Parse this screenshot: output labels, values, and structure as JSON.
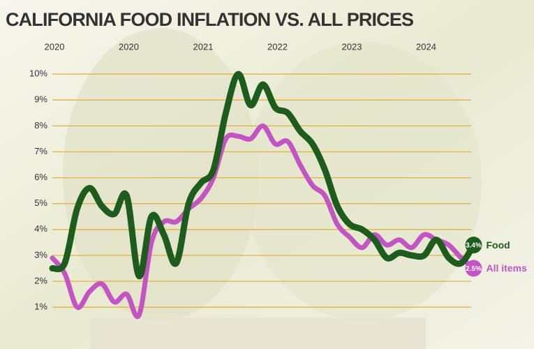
{
  "chart_data": {
    "type": "line",
    "title": "CALIFORNIA FOOD INFLATION VS. ALL PRICES",
    "x": [
      0,
      2,
      4,
      6,
      8,
      10,
      12,
      14,
      16,
      18,
      20,
      22,
      24,
      26,
      28,
      30,
      32,
      34,
      36,
      38,
      40,
      42,
      44,
      46,
      48,
      50,
      52,
      54,
      56,
      58,
      60,
      62,
      64,
      66,
      68
    ],
    "xlim": [
      0,
      68
    ],
    "xticks": [
      {
        "value": 0,
        "label": "2020"
      },
      {
        "value": 12,
        "label": "2020"
      },
      {
        "value": 24,
        "label": "2021"
      },
      {
        "value": 36,
        "label": "2022"
      },
      {
        "value": 48,
        "label": "2023"
      },
      {
        "value": 60,
        "label": "2024"
      }
    ],
    "ylim": [
      0.8,
      10.1
    ],
    "yticks": [
      {
        "value": 1,
        "label": "1%"
      },
      {
        "value": 2,
        "label": "2%"
      },
      {
        "value": 3,
        "label": "3%"
      },
      {
        "value": 4,
        "label": "4%"
      },
      {
        "value": 5,
        "label": "5%"
      },
      {
        "value": 6,
        "label": "6%"
      },
      {
        "value": 7,
        "label": "7%"
      },
      {
        "value": 8,
        "label": "8%"
      },
      {
        "value": 9,
        "label": "9%"
      },
      {
        "value": 10,
        "label": "10%"
      }
    ],
    "grid": true,
    "series": [
      {
        "name": "Food",
        "color": "#1e5c1e",
        "end_label": "3.4%",
        "values": [
          2.5,
          2.7,
          4.8,
          5.6,
          4.9,
          4.6,
          5.3,
          2.2,
          4.5,
          3.8,
          2.7,
          5.0,
          5.8,
          6.3,
          8.5,
          10.0,
          8.8,
          9.6,
          8.7,
          8.5,
          7.8,
          7.3,
          6.3,
          4.9,
          4.2,
          4.0,
          3.6,
          2.9,
          3.1,
          3.0,
          3.0,
          3.6,
          2.9,
          2.7,
          3.4
        ]
      },
      {
        "name": "All items",
        "color": "#c354c3",
        "end_label": "2.5%",
        "values": [
          2.9,
          2.3,
          1.0,
          1.6,
          1.9,
          1.2,
          1.5,
          0.7,
          3.5,
          4.3,
          4.3,
          4.8,
          5.2,
          6.0,
          7.5,
          7.6,
          7.5,
          8.0,
          7.3,
          7.4,
          6.5,
          5.7,
          5.3,
          4.2,
          3.7,
          3.3,
          3.8,
          3.4,
          3.6,
          3.3,
          3.8,
          3.6,
          3.4,
          2.9,
          2.5
        ]
      }
    ]
  }
}
